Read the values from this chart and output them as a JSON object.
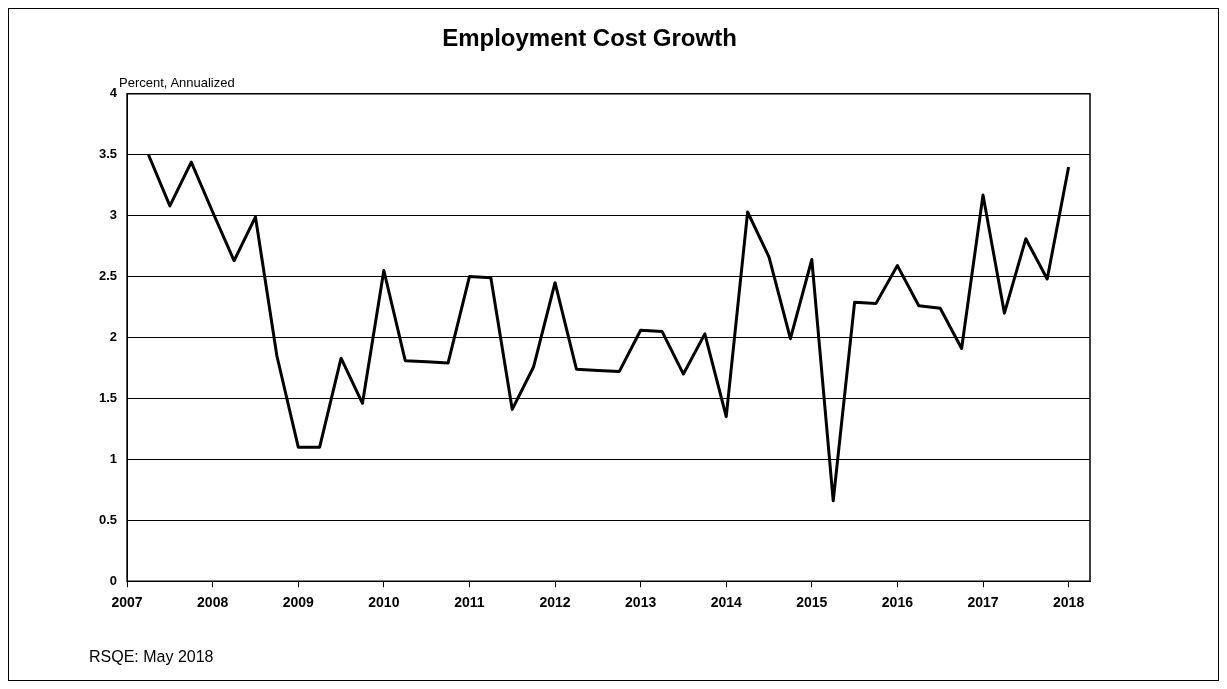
{
  "chart_data": {
    "type": "line",
    "title": "Employment Cost Growth",
    "ylabel": "Percent, Annualized",
    "annotations": [
      "RSQE: May 2018"
    ],
    "x": [
      2007.25,
      2007.5,
      2007.75,
      2008,
      2008.25,
      2008.5,
      2008.75,
      2009,
      2009.25,
      2009.5,
      2009.75,
      2010,
      2010.25,
      2010.5,
      2010.75,
      2011,
      2011.25,
      2011.5,
      2011.75,
      2012,
      2012.25,
      2012.5,
      2012.75,
      2013,
      2013.25,
      2013.5,
      2013.75,
      2014,
      2014.25,
      2014.5,
      2014.75,
      2015,
      2015.25,
      2015.5,
      2015.75,
      2016,
      2016.25,
      2016.5,
      2016.75,
      2017,
      2017.25,
      2017.5,
      2017.75,
      2018
    ],
    "series": [
      {
        "color": "#000000",
        "values": [
          3.5,
          3.08,
          3.44,
          3.03,
          2.63,
          2.99,
          1.85,
          1.1,
          1.1,
          1.83,
          1.46,
          2.55,
          1.81,
          1.8,
          1.79,
          2.5,
          2.49,
          1.41,
          1.76,
          2.45,
          1.74,
          1.73,
          1.72,
          2.06,
          2.05,
          1.7,
          2.03,
          1.35,
          3.03,
          2.66,
          1.99,
          2.64,
          0.66,
          2.29,
          2.28,
          2.59,
          2.26,
          2.24,
          1.91,
          3.17,
          2.2,
          2.81,
          2.48,
          3.4
        ]
      }
    ],
    "xlim": [
      2007,
      2018.25
    ],
    "xticks": [
      2007,
      2008,
      2009,
      2010,
      2011,
      2012,
      2013,
      2014,
      2015,
      2016,
      2017,
      2018
    ],
    "ylim": [
      0,
      4
    ],
    "yticks": [
      0,
      0.5,
      1,
      1.5,
      2,
      2.5,
      3,
      3.5,
      4
    ],
    "grid": "y",
    "legend": false,
    "marker": "none",
    "line_style": "solid"
  }
}
